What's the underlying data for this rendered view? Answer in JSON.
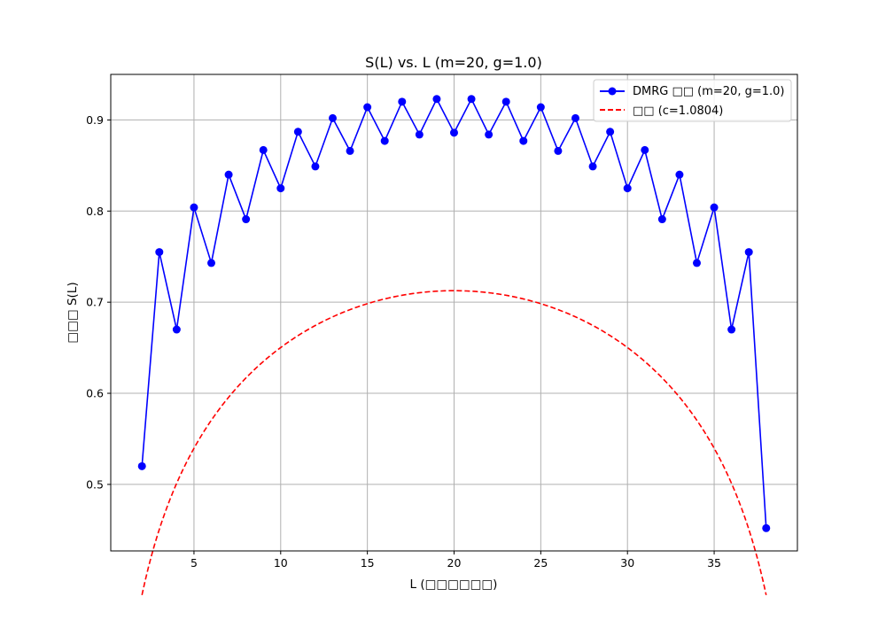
{
  "chart_data": {
    "type": "line",
    "title": "S(L) vs. L (m=20, g=1.0)",
    "xlabel": "L (□□□□□□)",
    "ylabel": "□□□ S(L)",
    "xlim": [
      0.2,
      39.8
    ],
    "ylim": [
      0.427,
      0.95
    ],
    "xticks": [
      5,
      10,
      15,
      20,
      25,
      30,
      35
    ],
    "yticks": [
      0.5,
      0.6,
      0.7,
      0.8,
      0.9
    ],
    "xtick_labels": [
      "5",
      "10",
      "15",
      "20",
      "25",
      "30",
      "35"
    ],
    "ytick_labels": [
      "0.5",
      "0.6",
      "0.7",
      "0.8",
      "0.9"
    ],
    "grid": true,
    "legend_position": "top-right",
    "series": [
      {
        "name": "DMRG □□ (m=20, g=1.0)",
        "style": "solid line with circle markers",
        "color": "#0000ff",
        "x": [
          2,
          3,
          4,
          5,
          6,
          7,
          8,
          9,
          10,
          11,
          12,
          13,
          14,
          15,
          16,
          17,
          18,
          19,
          20,
          21,
          22,
          23,
          24,
          25,
          26,
          27,
          28,
          29,
          30,
          31,
          32,
          33,
          34,
          35,
          36,
          37,
          38
        ],
        "y": [
          0.52,
          0.755,
          0.67,
          0.804,
          0.743,
          0.84,
          0.791,
          0.867,
          0.825,
          0.887,
          0.849,
          0.902,
          0.866,
          0.914,
          0.877,
          0.92,
          0.884,
          0.923,
          0.886,
          0.923,
          0.884,
          0.92,
          0.877,
          0.914,
          0.866,
          0.902,
          0.849,
          0.887,
          0.825,
          0.867,
          0.791,
          0.84,
          0.743,
          0.804,
          0.67,
          0.755,
          0.452
        ]
      },
      {
        "name": "□□ (c=1.0804)",
        "style": "dashed line",
        "color": "#ff0000",
        "fit": {
          "c": 1.0804,
          "N": 40,
          "const": 0.2545,
          "x_start": 2,
          "x_end": 38
        }
      }
    ]
  }
}
